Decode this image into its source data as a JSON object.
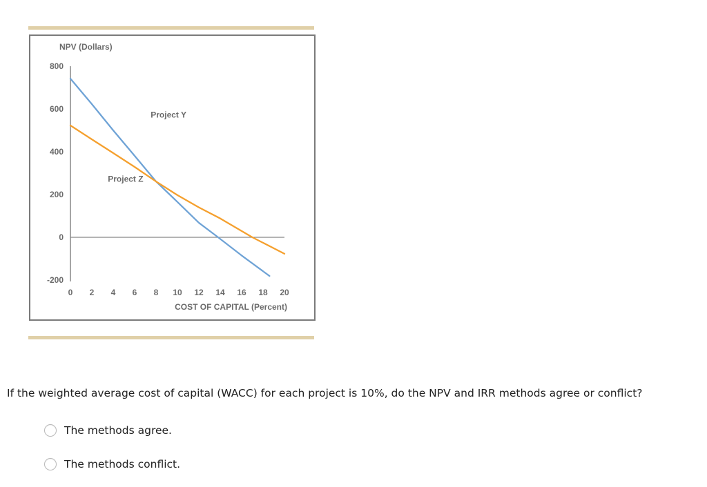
{
  "figure": {
    "decor_bar_color": "#e0d0a8",
    "border_color": "#7a7a7a"
  },
  "chart_data": {
    "type": "line",
    "title": "",
    "xlabel": "COST OF CAPITAL (Percent)",
    "ylabel": "NPV (Dollars)",
    "xlim": [
      0,
      20
    ],
    "ylim": [
      -200,
      800
    ],
    "x_ticks": [
      0,
      2,
      4,
      6,
      8,
      10,
      12,
      14,
      16,
      18,
      20
    ],
    "y_ticks": [
      800,
      600,
      400,
      200,
      0,
      -200
    ],
    "grid": false,
    "legend": "inline labels",
    "series": [
      {
        "name": "Project Y",
        "color": "#6fa3d6",
        "x": [
          0,
          2,
          4,
          6,
          8,
          10,
          12,
          13.8,
          16,
          18.6
        ],
        "values": [
          742,
          623,
          500,
          381,
          261,
          165,
          68,
          0,
          -85,
          -181
        ]
      },
      {
        "name": "Project Z",
        "color": "#f5a02e",
        "x": [
          0,
          2,
          4,
          6,
          8,
          10,
          12,
          14,
          17,
          20
        ],
        "values": [
          523,
          458,
          394,
          329,
          261,
          197,
          140,
          88,
          0,
          -77
        ]
      }
    ],
    "annotations": [
      {
        "text": "Project Y",
        "x": 7.5,
        "y": 560
      },
      {
        "text": "Project Z",
        "x": 3.5,
        "y": 260
      }
    ]
  },
  "question": {
    "text": "If the weighted average cost of capital (WACC) for each project is 10%, do the NPV and IRR methods agree or conflict?",
    "options": [
      {
        "label": "The methods agree.",
        "selected": false
      },
      {
        "label": "The methods conflict.",
        "selected": false
      }
    ]
  }
}
